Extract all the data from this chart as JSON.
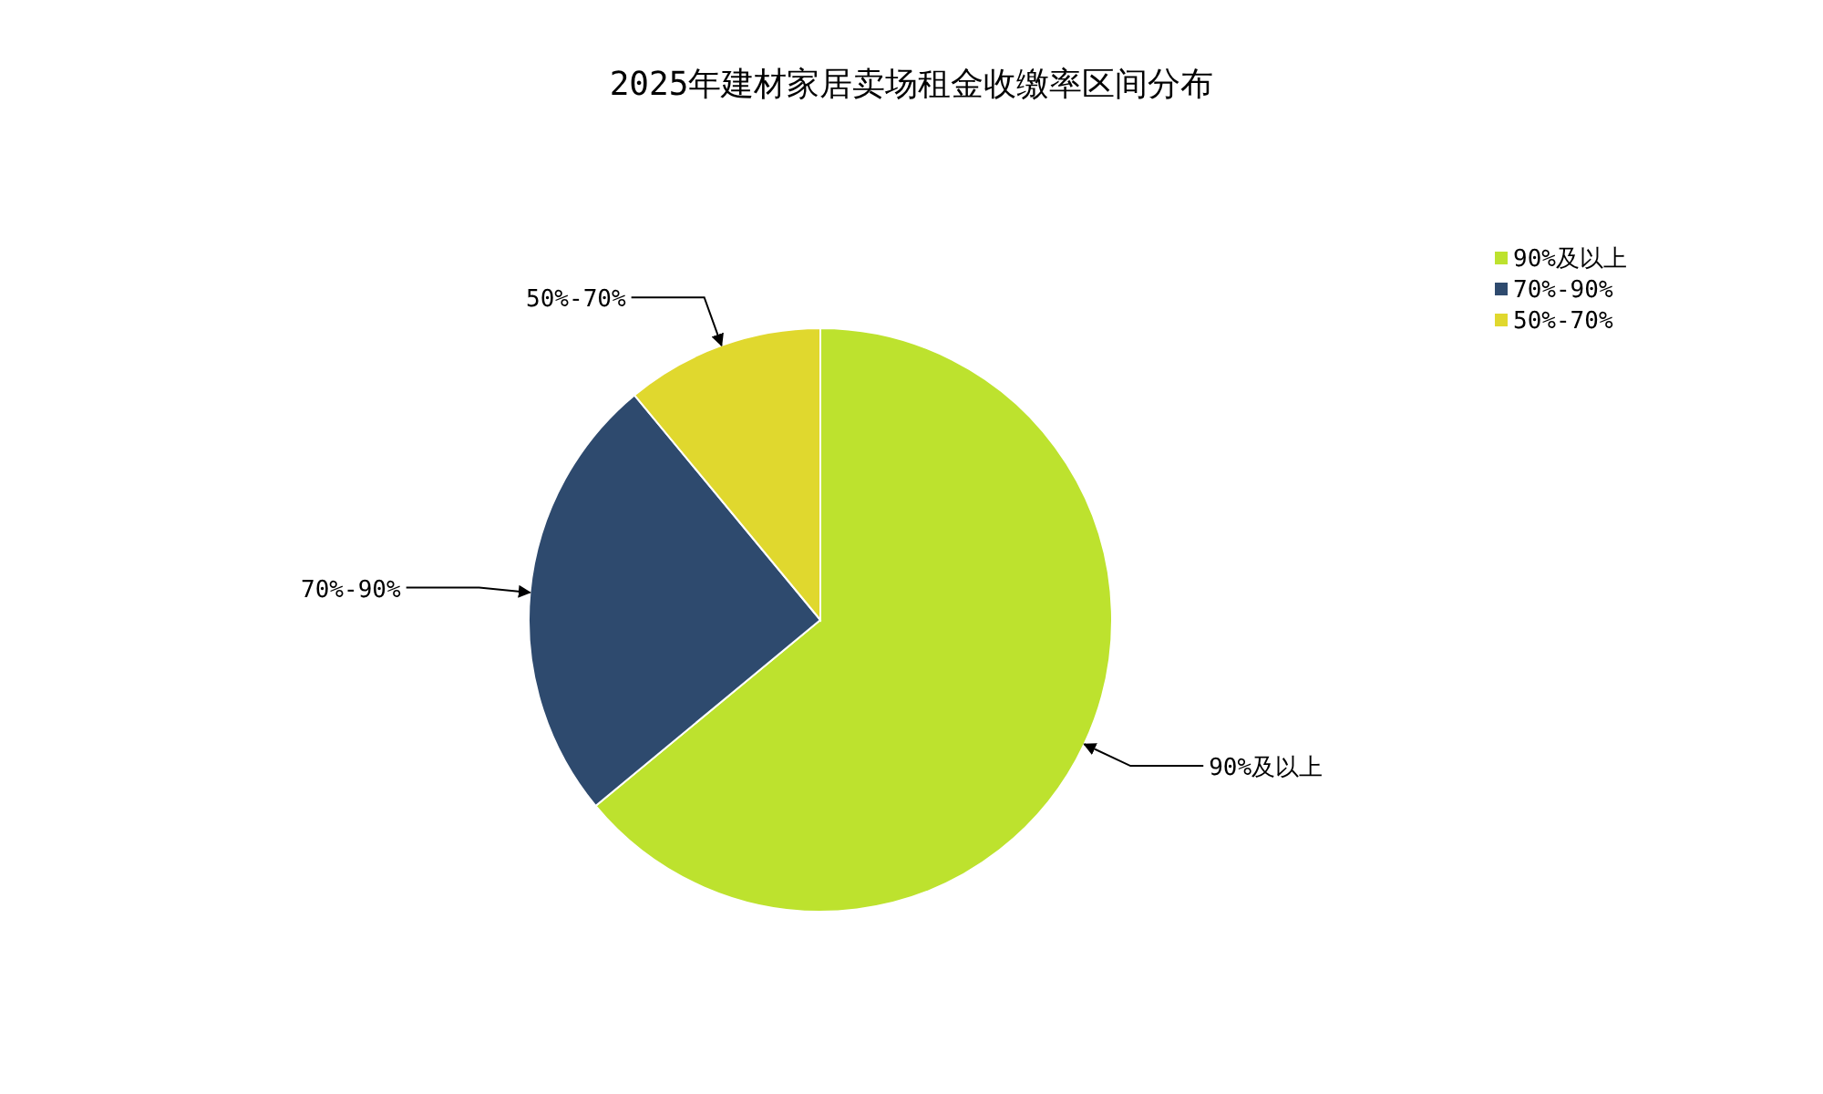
{
  "chart_data": {
    "type": "pie",
    "title": "2025年建材家居卖场租金收缴率区间分布",
    "categories": [
      "90%及以上",
      "70%-90%",
      "50%-70%"
    ],
    "values": [
      64,
      25,
      11
    ],
    "colors": [
      "#bde22e",
      "#2e4a6e",
      "#e0d82e"
    ],
    "legend": "top right"
  }
}
